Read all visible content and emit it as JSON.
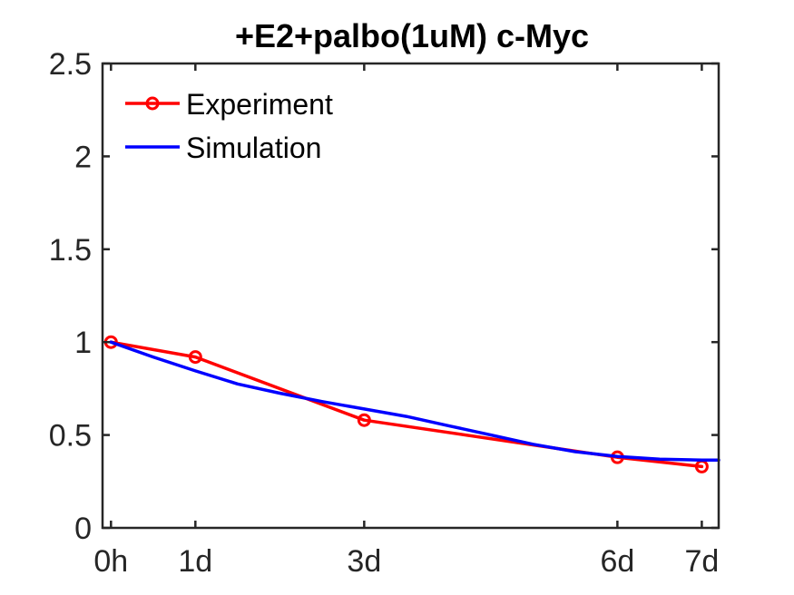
{
  "chart_data": {
    "type": "line",
    "title": "+E2+palbo(1uM) c-Myc",
    "xlabel": "",
    "ylabel": "",
    "x_ticks": [
      {
        "value": 0,
        "label": "0h"
      },
      {
        "value": 1,
        "label": "1d"
      },
      {
        "value": 3,
        "label": "3d"
      },
      {
        "value": 6,
        "label": "6d"
      },
      {
        "value": 7,
        "label": "7d"
      }
    ],
    "xlim": [
      -0.1,
      7.2
    ],
    "ylim": [
      0,
      2.5
    ],
    "y_ticks": [
      {
        "value": 0,
        "label": "0"
      },
      {
        "value": 0.5,
        "label": "0.5"
      },
      {
        "value": 1,
        "label": "1"
      },
      {
        "value": 1.5,
        "label": "1.5"
      },
      {
        "value": 2,
        "label": "2"
      },
      {
        "value": 2.5,
        "label": "2.5"
      }
    ],
    "grid": false,
    "legend_position": "top-left",
    "series": [
      {
        "name": "Experiment",
        "color": "#ff0000",
        "marker": "circle",
        "x": [
          0,
          1,
          3,
          6,
          7
        ],
        "y": [
          1.0,
          0.92,
          0.58,
          0.38,
          0.33
        ]
      },
      {
        "name": "Simulation",
        "color": "#0000ff",
        "marker": "none",
        "x": [
          0,
          0.5,
          1,
          1.5,
          2,
          2.5,
          3,
          3.5,
          4,
          4.5,
          5,
          5.5,
          6,
          6.5,
          7,
          7.2
        ],
        "y": [
          1.0,
          0.92,
          0.845,
          0.775,
          0.725,
          0.68,
          0.64,
          0.6,
          0.55,
          0.5,
          0.45,
          0.41,
          0.385,
          0.37,
          0.365,
          0.365
        ]
      }
    ]
  }
}
